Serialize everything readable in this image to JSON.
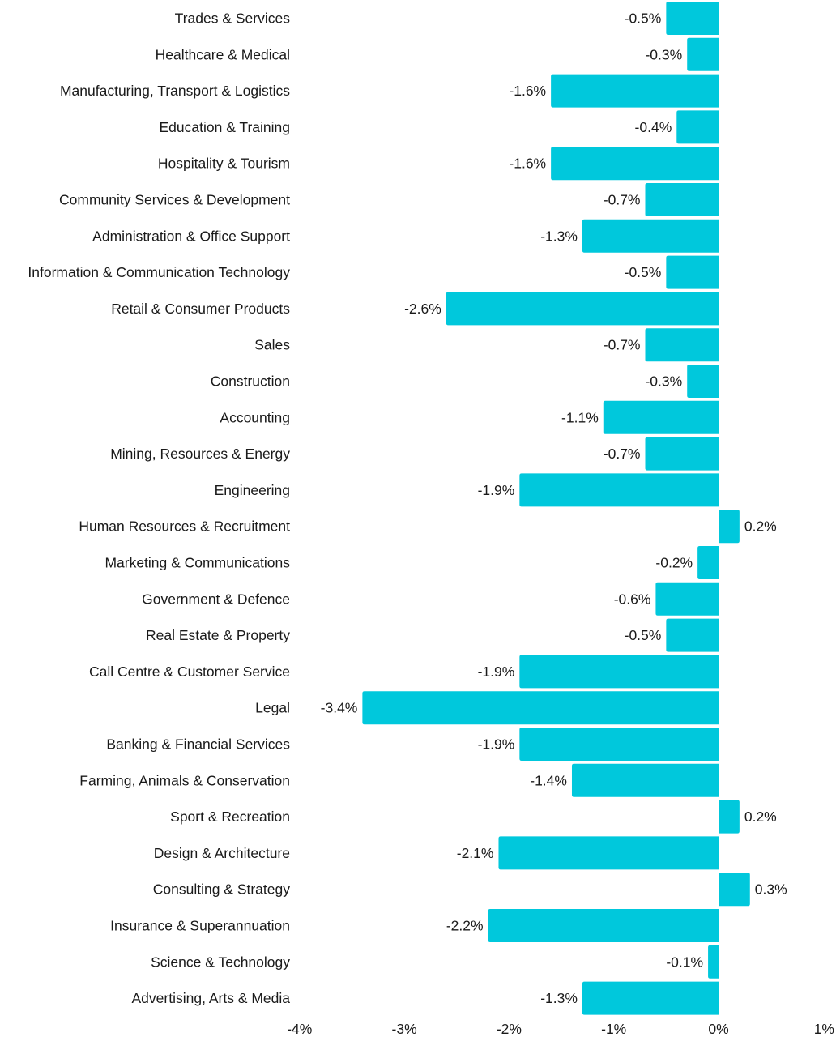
{
  "chart_data": {
    "type": "bar",
    "orientation": "horizontal",
    "title": "",
    "xlabel": "",
    "ylabel": "",
    "xlim": [
      -4,
      1
    ],
    "x_ticks": [
      -4,
      -3,
      -2,
      -1,
      0,
      1
    ],
    "x_tick_labels": [
      "-4%",
      "-3%",
      "-2%",
      "-1%",
      "0%",
      "1%"
    ],
    "grid": false,
    "legend": "none",
    "bar_color": "#00C8DC",
    "categories": [
      "Trades & Services",
      "Healthcare & Medical",
      "Manufacturing, Transport & Logistics",
      "Education & Training",
      "Hospitality & Tourism",
      "Community Services & Development",
      "Administration & Office Support",
      "Information & Communication Technology",
      "Retail & Consumer Products",
      "Sales",
      "Construction",
      "Accounting",
      "Mining, Resources & Energy",
      "Engineering",
      "Human Resources & Recruitment",
      "Marketing & Communications",
      "Government & Defence",
      "Real Estate & Property",
      "Call Centre & Customer Service",
      "Legal",
      "Banking & Financial Services",
      "Farming, Animals & Conservation",
      "Sport & Recreation",
      "Design & Architecture",
      "Consulting & Strategy",
      "Insurance & Superannuation",
      "Science & Technology",
      "Advertising, Arts & Media"
    ],
    "values": [
      -0.5,
      -0.3,
      -1.6,
      -0.4,
      -1.6,
      -0.7,
      -1.3,
      -0.5,
      -2.6,
      -0.7,
      -0.3,
      -1.1,
      -0.7,
      -1.9,
      0.2,
      -0.2,
      -0.6,
      -0.5,
      -1.9,
      -3.4,
      -1.9,
      -1.4,
      0.2,
      -2.1,
      0.3,
      -2.2,
      -0.1,
      -1.3
    ],
    "value_labels": [
      "-0.5%",
      "-0.3%",
      "-1.6%",
      "-0.4%",
      "-1.6%",
      "-0.7%",
      "-1.3%",
      "-0.5%",
      "-2.6%",
      "-0.7%",
      "-0.3%",
      "-1.1%",
      "-0.7%",
      "-1.9%",
      "0.2%",
      "-0.2%",
      "-0.6%",
      "-0.5%",
      "-1.9%",
      "-3.4%",
      "-1.9%",
      "-1.4%",
      "0.2%",
      "-2.1%",
      "0.3%",
      "-2.2%",
      "-0.1%",
      "-1.3%"
    ],
    "unit": "%"
  }
}
